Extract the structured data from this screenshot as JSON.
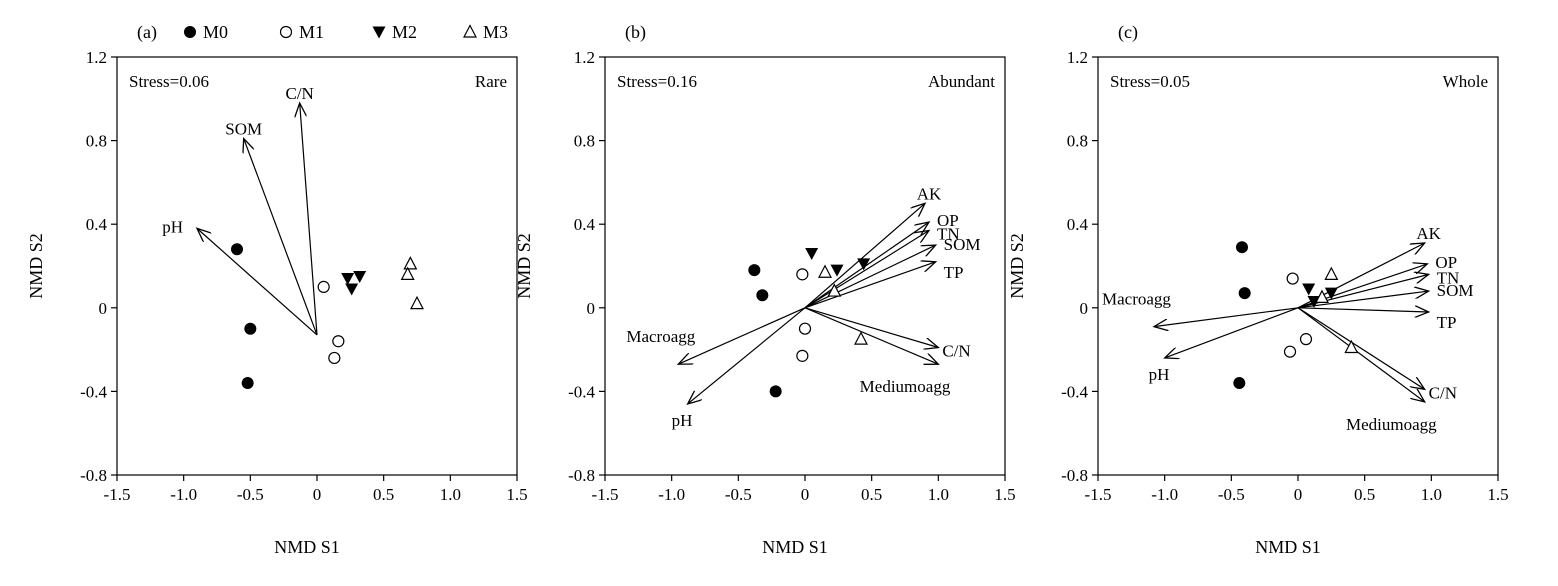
{
  "legend": [
    {
      "name": "M0",
      "marker": "filled-circle"
    },
    {
      "name": "M1",
      "marker": "open-circle"
    },
    {
      "name": "M2",
      "marker": "filled-triangle-down"
    },
    {
      "name": "M3",
      "marker": "open-triangle-up"
    }
  ],
  "chart_data": [
    {
      "type": "scatter",
      "panel_label": "(a)",
      "stress_text": "Stress=0.06",
      "group_label": "Rare",
      "xlabel": "NMD S1",
      "ylabel": "NMD S2",
      "xlim": [
        -1.5,
        1.5
      ],
      "ylim": [
        -0.8,
        1.2
      ],
      "xticks": [
        -1.5,
        -1.0,
        -0.5,
        0,
        0.5,
        1.0,
        1.5
      ],
      "xtick_labels": [
        "-1.5",
        "-1.0",
        "-0.5",
        "0",
        "0.5",
        "1.0",
        "1.5"
      ],
      "yticks": [
        -0.8,
        -0.4,
        0,
        0.4,
        0.8,
        1.2
      ],
      "ytick_labels": [
        "-0.8",
        "-0.4",
        "0",
        "0.4",
        "0.8",
        "1.2"
      ],
      "grid": false,
      "origin": [
        0.0,
        -0.13
      ],
      "series": [
        {
          "name": "M0",
          "points": [
            [
              -0.6,
              0.28
            ],
            [
              -0.5,
              -0.1
            ],
            [
              -0.52,
              -0.36
            ]
          ]
        },
        {
          "name": "M1",
          "points": [
            [
              0.05,
              0.1
            ],
            [
              0.16,
              -0.16
            ],
            [
              0.13,
              -0.24
            ]
          ]
        },
        {
          "name": "M2",
          "points": [
            [
              0.23,
              0.14
            ],
            [
              0.32,
              0.15
            ],
            [
              0.26,
              0.09
            ]
          ]
        },
        {
          "name": "M3",
          "points": [
            [
              0.7,
              0.21
            ],
            [
              0.68,
              0.16
            ],
            [
              0.75,
              0.02
            ]
          ]
        }
      ],
      "vectors": [
        {
          "label": "C/N",
          "end": [
            -0.13,
            0.98
          ]
        },
        {
          "label": "SOM",
          "end": [
            -0.55,
            0.81
          ]
        },
        {
          "label": "pH",
          "end": [
            -0.9,
            0.38
          ]
        }
      ]
    },
    {
      "type": "scatter",
      "panel_label": "(b)",
      "stress_text": "Stress=0.16",
      "group_label": "Abundant",
      "xlabel": "NMD S1",
      "ylabel": "NMD S2",
      "xlim": [
        -1.5,
        1.5
      ],
      "ylim": [
        -0.8,
        1.2
      ],
      "xticks": [
        -1.5,
        -1.0,
        -0.5,
        0,
        0.5,
        1.0,
        1.5
      ],
      "xtick_labels": [
        "-1.5",
        "-1.0",
        "-0.5",
        "0",
        "0.5",
        "1.0",
        "1.5"
      ],
      "yticks": [
        -0.8,
        -0.4,
        0,
        0.4,
        0.8,
        1.2
      ],
      "ytick_labels": [
        "-0.8",
        "-0.4",
        "0",
        "0.4",
        "0.8",
        "1.2"
      ],
      "grid": false,
      "origin": [
        0.0,
        0.0
      ],
      "series": [
        {
          "name": "M0",
          "points": [
            [
              -0.38,
              0.18
            ],
            [
              -0.32,
              0.06
            ],
            [
              -0.22,
              -0.4
            ]
          ]
        },
        {
          "name": "M1",
          "points": [
            [
              -0.02,
              0.16
            ],
            [
              0.0,
              -0.1
            ],
            [
              -0.02,
              -0.23
            ]
          ]
        },
        {
          "name": "M2",
          "points": [
            [
              0.05,
              0.26
            ],
            [
              0.24,
              0.18
            ],
            [
              0.44,
              0.21
            ]
          ]
        },
        {
          "name": "M3",
          "points": [
            [
              0.15,
              0.17
            ],
            [
              0.22,
              0.08
            ],
            [
              0.42,
              -0.15
            ]
          ]
        }
      ],
      "vectors": [
        {
          "label": "AK",
          "end": [
            0.9,
            0.5
          ]
        },
        {
          "label": "OP",
          "end": [
            0.93,
            0.41
          ]
        },
        {
          "label": "TN",
          "end": [
            0.93,
            0.37
          ]
        },
        {
          "label": "SOM",
          "end": [
            0.98,
            0.3
          ]
        },
        {
          "label": "TP",
          "end": [
            0.98,
            0.22
          ]
        },
        {
          "label": "C/N",
          "end": [
            1.0,
            -0.19
          ]
        },
        {
          "label": "Mediumoagg",
          "end": [
            1.0,
            -0.27
          ]
        },
        {
          "label": "Macroagg",
          "end": [
            -0.95,
            -0.27
          ]
        },
        {
          "label": "pH",
          "end": [
            -0.88,
            -0.46
          ]
        }
      ]
    },
    {
      "type": "scatter",
      "panel_label": "(c)",
      "stress_text": "Stress=0.05",
      "group_label": "Whole",
      "xlabel": "NMD S1",
      "ylabel": "NMD S2",
      "xlim": [
        -1.5,
        1.5
      ],
      "ylim": [
        -0.8,
        1.2
      ],
      "xticks": [
        -1.5,
        -1.0,
        -0.5,
        0,
        0.5,
        1.0,
        1.5
      ],
      "xtick_labels": [
        "-1.5",
        "-1.0",
        "-0.5",
        "0",
        "0.5",
        "1.0",
        "1.5"
      ],
      "yticks": [
        -0.8,
        -0.4,
        0,
        0.4,
        0.8,
        1.2
      ],
      "ytick_labels": [
        "-0.8",
        "-0.4",
        "0",
        "0.4",
        "0.8",
        "1.2"
      ],
      "grid": false,
      "origin": [
        0.0,
        0.0
      ],
      "series": [
        {
          "name": "M0",
          "points": [
            [
              -0.42,
              0.29
            ],
            [
              -0.4,
              0.07
            ],
            [
              -0.44,
              -0.36
            ]
          ]
        },
        {
          "name": "M1",
          "points": [
            [
              -0.04,
              0.14
            ],
            [
              0.06,
              -0.15
            ],
            [
              -0.06,
              -0.21
            ]
          ]
        },
        {
          "name": "M2",
          "points": [
            [
              0.08,
              0.09
            ],
            [
              0.12,
              0.03
            ],
            [
              0.25,
              0.07
            ]
          ]
        },
        {
          "name": "M3",
          "points": [
            [
              0.25,
              0.16
            ],
            [
              0.18,
              0.05
            ],
            [
              0.4,
              -0.19
            ]
          ]
        }
      ],
      "vectors": [
        {
          "label": "AK",
          "end": [
            0.95,
            0.31
          ]
        },
        {
          "label": "OP",
          "end": [
            0.97,
            0.21
          ]
        },
        {
          "label": "TN",
          "end": [
            0.98,
            0.16
          ]
        },
        {
          "label": "SOM",
          "end": [
            0.98,
            0.08
          ]
        },
        {
          "label": "TP",
          "end": [
            0.98,
            -0.02
          ]
        },
        {
          "label": "C/N",
          "end": [
            0.95,
            -0.39
          ]
        },
        {
          "label": "Mediumoagg",
          "end": [
            0.95,
            -0.45
          ]
        },
        {
          "label": "Macroagg",
          "end": [
            -1.08,
            -0.09
          ]
        },
        {
          "label": "pH",
          "end": [
            -1.0,
            -0.24
          ]
        }
      ]
    }
  ]
}
